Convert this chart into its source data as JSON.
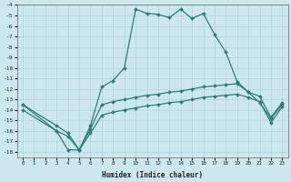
{
  "xlabel": "Humidex (Indice chaleur)",
  "background_color": "#cce8ee",
  "grid_color": "#aed4da",
  "line_color": "#2e7d70",
  "xlim": [
    -0.5,
    23.5
  ],
  "ylim": [
    -4.0,
    -18.5
  ],
  "xticks": [
    0,
    1,
    2,
    3,
    4,
    5,
    6,
    7,
    8,
    9,
    10,
    11,
    12,
    13,
    14,
    15,
    16,
    17,
    18,
    19,
    20,
    21,
    22,
    23
  ],
  "yticks": [
    -4,
    -5,
    -6,
    -7,
    -8,
    -9,
    -10,
    -11,
    -12,
    -13,
    -14,
    -15,
    -16,
    -17,
    -18
  ],
  "series": [
    {
      "x": [
        0,
        3,
        4,
        5,
        6,
        7,
        8,
        9,
        10,
        11,
        12,
        13,
        14,
        15,
        16,
        17,
        18,
        19,
        20,
        21,
        22,
        23
      ],
      "y": [
        -13.5,
        -16.0,
        -17.8,
        -17.8,
        -15.5,
        -11.8,
        -11.2,
        -10.0,
        -4.4,
        -4.8,
        -4.9,
        -5.2,
        -4.4,
        -5.3,
        -4.8,
        -6.8,
        -8.5,
        -11.3,
        -12.3,
        -13.3,
        -14.8,
        -13.5
      ]
    },
    {
      "x": [
        0,
        3,
        4,
        5,
        6,
        7,
        8,
        9,
        10,
        11,
        12,
        13,
        14,
        15,
        16,
        17,
        18,
        19,
        20,
        21,
        22,
        23
      ],
      "y": [
        -13.5,
        -15.5,
        -16.2,
        -17.8,
        -15.8,
        -13.5,
        -13.2,
        -13.0,
        -12.8,
        -12.6,
        -12.5,
        -12.3,
        -12.2,
        -12.0,
        -11.8,
        -11.7,
        -11.6,
        -11.5,
        -12.3,
        -12.7,
        -14.7,
        -13.3
      ]
    },
    {
      "x": [
        0,
        3,
        4,
        5,
        6,
        7,
        8,
        9,
        10,
        11,
        12,
        13,
        14,
        15,
        16,
        17,
        18,
        19,
        20,
        21,
        22,
        23
      ],
      "y": [
        -14.0,
        -16.0,
        -16.5,
        -17.8,
        -16.2,
        -14.5,
        -14.2,
        -14.0,
        -13.8,
        -13.6,
        -13.5,
        -13.3,
        -13.2,
        -13.0,
        -12.8,
        -12.7,
        -12.6,
        -12.5,
        -12.8,
        -13.2,
        -15.2,
        -13.7
      ]
    }
  ]
}
